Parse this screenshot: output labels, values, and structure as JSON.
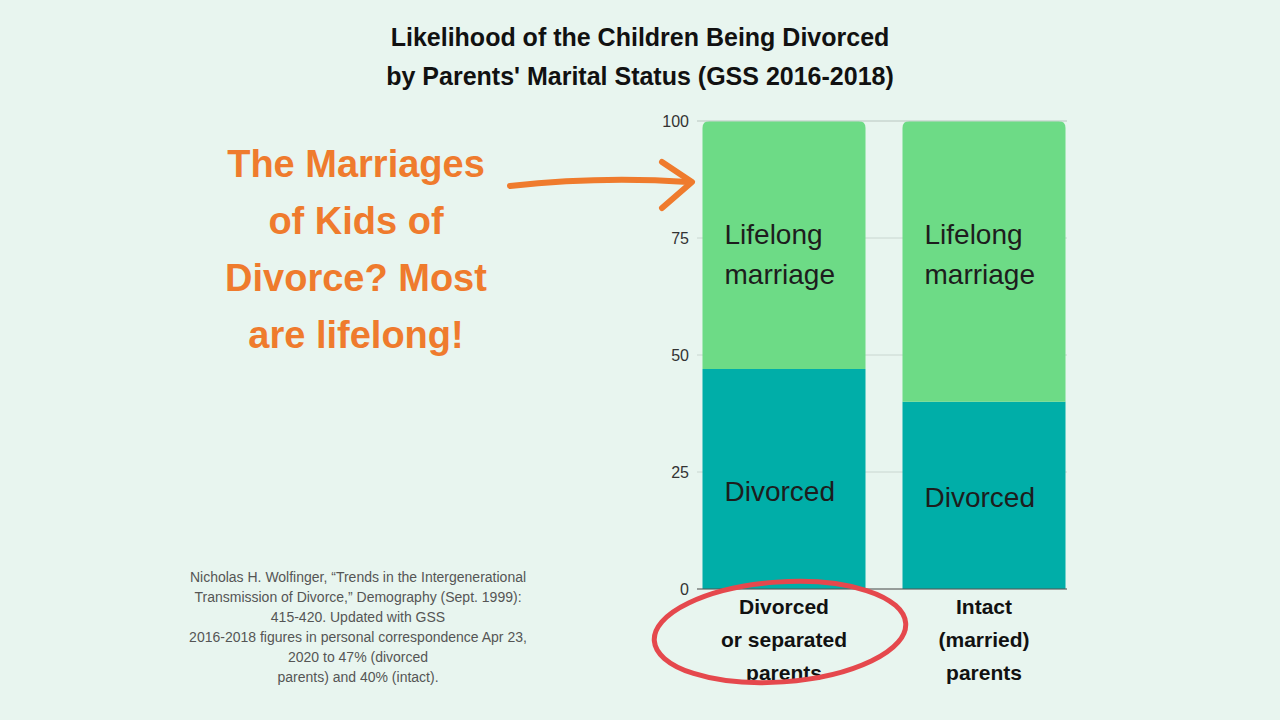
{
  "chart_data": {
    "type": "bar",
    "stacked": true,
    "title": "Likelihood of the Children Being Divorced\nby Parents' Marital Status (GSS 2016-2018)",
    "annotations": [
      "The Marriages\nof Kids of\nDivorce? Most\nare lifelong!",
      "Nicholas H. Wolfinger, “Trends in the Intergenerational\nTransmission of Divorce,” Demography (Sept. 1999):\n415-420. Updated with GSS\n2016-2018 figures  in personal correspondence Apr 23,\n2020 to 47% (divorced\nparents) and 40% (intact)."
    ],
    "categories": [
      "Divorced\nor separated\nparents",
      "Intact\n(married)\nparents"
    ],
    "series": [
      {
        "name": "Divorced",
        "color": "#00aea8",
        "values": [
          47,
          40
        ]
      },
      {
        "name": "Lifelong marriage",
        "color": "#6ddb86",
        "values": [
          53,
          60
        ]
      }
    ],
    "ylim": [
      0,
      100
    ],
    "yticks": [
      0,
      25,
      50,
      75,
      100
    ],
    "grid": true
  }
}
